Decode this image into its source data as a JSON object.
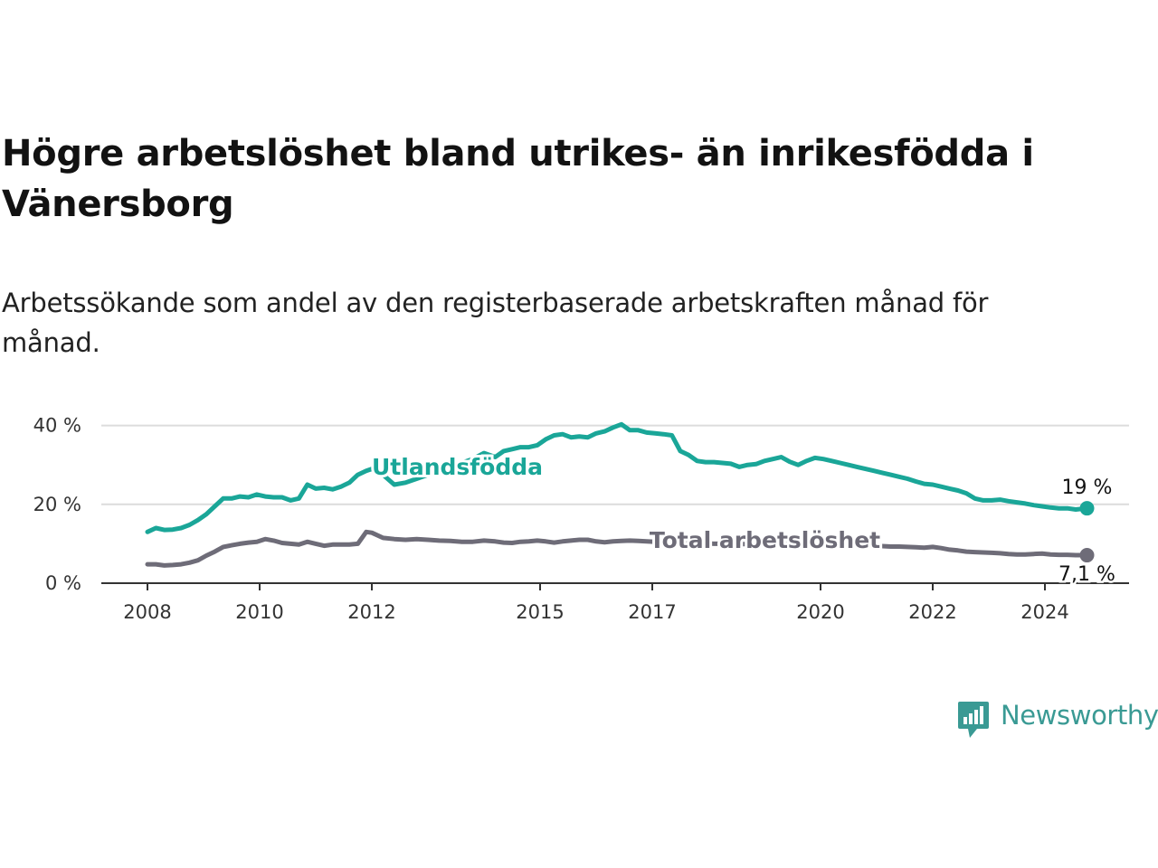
{
  "title": "Högre arbetslöshet bland utrikes- än inrikesfödda i Vänersborg",
  "subtitle": "Arbetssökande som andel av den registerbaserade arbetskraften månad för månad.",
  "brand": {
    "name": "Newsworthy",
    "icon": "newsworthy-logo-icon",
    "color": "#3a9a94"
  },
  "chart_data": {
    "type": "line",
    "title": "Högre arbetslöshet bland utrikes- än inrikesfödda i Vänersborg",
    "xlabel": "",
    "ylabel": "",
    "ylim": [
      0,
      45
    ],
    "y_ticks": [
      0,
      20,
      40
    ],
    "y_tick_labels": [
      "0 %",
      "20 %",
      "40 %"
    ],
    "x_ticks": [
      2008,
      2010,
      2012,
      2015,
      2017,
      2020,
      2022,
      2024
    ],
    "x_tick_labels": [
      "2008",
      "2010",
      "2012",
      "2015",
      "2017",
      "2020",
      "2022",
      "2024"
    ],
    "grid": true,
    "series": [
      {
        "name": "Utlandsfödda",
        "color": "#1aa698",
        "end_label": "19 %",
        "x": [
          2008.0,
          2008.15,
          2008.3,
          2008.45,
          2008.6,
          2008.75,
          2008.9,
          2009.05,
          2009.2,
          2009.35,
          2009.5,
          2009.65,
          2009.8,
          2009.95,
          2010.1,
          2010.25,
          2010.4,
          2010.55,
          2010.7,
          2010.85,
          2011.0,
          2011.15,
          2011.3,
          2011.45,
          2011.6,
          2011.75,
          2011.9,
          2012.0,
          2012.2,
          2012.4,
          2012.6,
          2012.8,
          2013.0,
          2013.2,
          2013.4,
          2013.6,
          2013.8,
          2014.0,
          2014.2,
          2014.35,
          2014.5,
          2014.65,
          2014.8,
          2014.95,
          2015.1,
          2015.25,
          2015.4,
          2015.55,
          2015.7,
          2015.85,
          2016.0,
          2016.15,
          2016.3,
          2016.45,
          2016.6,
          2016.75,
          2016.9,
          2017.05,
          2017.2,
          2017.35,
          2017.5,
          2017.65,
          2017.8,
          2017.95,
          2018.1,
          2018.25,
          2018.4,
          2018.55,
          2018.7,
          2018.85,
          2019.0,
          2019.15,
          2019.3,
          2019.45,
          2019.6,
          2019.75,
          2019.9,
          2020.05,
          2020.2,
          2020.35,
          2020.5,
          2020.65,
          2020.8,
          2020.95,
          2021.1,
          2021.25,
          2021.4,
          2021.55,
          2021.7,
          2021.85,
          2022.0,
          2022.15,
          2022.3,
          2022.45,
          2022.6,
          2022.75,
          2022.9,
          2023.05,
          2023.2,
          2023.35,
          2023.5,
          2023.65,
          2023.8,
          2023.95,
          2024.1,
          2024.25,
          2024.4,
          2024.55,
          2024.75
        ],
        "values": [
          13.0,
          14.0,
          13.5,
          13.6,
          14.0,
          14.8,
          16.0,
          17.5,
          19.5,
          21.5,
          21.5,
          22.0,
          21.8,
          22.5,
          22.0,
          21.8,
          21.8,
          21.0,
          21.5,
          25.0,
          24.0,
          24.2,
          23.8,
          24.5,
          25.5,
          27.5,
          28.5,
          29.0,
          27.5,
          25.0,
          25.5,
          26.5,
          27.5,
          28.5,
          29.5,
          30.5,
          31.5,
          33.0,
          32.0,
          33.5,
          34.0,
          34.5,
          34.5,
          35.0,
          36.5,
          37.5,
          37.8,
          37.0,
          37.2,
          37.0,
          38.0,
          38.5,
          39.5,
          40.3,
          38.8,
          38.8,
          38.2,
          38.0,
          37.8,
          37.5,
          33.5,
          32.5,
          31.0,
          30.7,
          30.7,
          30.5,
          30.3,
          29.5,
          30.0,
          30.2,
          31.0,
          31.5,
          32.0,
          30.8,
          30.0,
          31.0,
          31.8,
          31.5,
          31.0,
          30.5,
          30.0,
          29.5,
          29.0,
          28.5,
          28.0,
          27.5,
          27.0,
          26.5,
          25.8,
          25.2,
          25.0,
          24.5,
          24.0,
          23.5,
          22.8,
          21.5,
          21.0,
          21.0,
          21.2,
          20.8,
          20.5,
          20.2,
          19.8,
          19.5,
          19.2,
          19.0,
          19.0,
          18.7,
          19.0
        ]
      },
      {
        "name": "Total arbetslöshet",
        "color": "#6e6c78",
        "end_label": "7,1 %",
        "x": [
          2008.0,
          2008.15,
          2008.3,
          2008.45,
          2008.6,
          2008.75,
          2008.9,
          2009.05,
          2009.2,
          2009.35,
          2009.5,
          2009.65,
          2009.8,
          2009.95,
          2010.1,
          2010.25,
          2010.4,
          2010.55,
          2010.7,
          2010.85,
          2011.0,
          2011.15,
          2011.3,
          2011.45,
          2011.6,
          2011.75,
          2011.9,
          2012.0,
          2012.2,
          2012.4,
          2012.6,
          2012.8,
          2013.0,
          2013.2,
          2013.4,
          2013.6,
          2013.8,
          2014.0,
          2014.2,
          2014.35,
          2014.5,
          2014.65,
          2014.8,
          2014.95,
          2015.1,
          2015.25,
          2015.4,
          2015.55,
          2015.7,
          2015.85,
          2016.0,
          2016.15,
          2016.3,
          2016.45,
          2016.6,
          2016.75,
          2016.9,
          2017.05,
          2017.2,
          2017.35,
          2017.5,
          2017.65,
          2017.8,
          2017.95,
          2018.1,
          2018.25,
          2018.4,
          2018.55,
          2018.7,
          2018.85,
          2019.0,
          2019.15,
          2019.3,
          2019.45,
          2019.6,
          2019.75,
          2019.9,
          2020.05,
          2020.2,
          2020.35,
          2020.5,
          2020.65,
          2020.8,
          2020.95,
          2021.1,
          2021.25,
          2021.4,
          2021.55,
          2021.7,
          2021.85,
          2022.0,
          2022.15,
          2022.3,
          2022.45,
          2022.6,
          2022.75,
          2022.9,
          2023.05,
          2023.2,
          2023.35,
          2023.5,
          2023.65,
          2023.8,
          2023.95,
          2024.1,
          2024.25,
          2024.4,
          2024.55,
          2024.75
        ],
        "values": [
          4.8,
          4.8,
          4.5,
          4.6,
          4.8,
          5.2,
          5.8,
          7.0,
          8.0,
          9.2,
          9.6,
          10.0,
          10.3,
          10.5,
          11.2,
          10.8,
          10.2,
          10.0,
          9.8,
          10.5,
          10.0,
          9.5,
          9.8,
          9.8,
          9.8,
          10.0,
          13.0,
          12.8,
          11.5,
          11.2,
          11.0,
          11.2,
          11.0,
          10.8,
          10.7,
          10.5,
          10.5,
          10.8,
          10.6,
          10.3,
          10.2,
          10.5,
          10.6,
          10.8,
          10.6,
          10.3,
          10.6,
          10.8,
          11.0,
          11.0,
          10.6,
          10.4,
          10.6,
          10.7,
          10.8,
          10.7,
          10.6,
          10.5,
          10.5,
          10.4,
          10.4,
          10.3,
          10.2,
          10.1,
          10.0,
          10.0,
          10.0,
          9.9,
          9.9,
          9.8,
          9.8,
          9.8,
          9.9,
          9.9,
          9.9,
          9.8,
          9.8,
          9.8,
          9.7,
          9.6,
          9.6,
          9.6,
          9.5,
          9.5,
          9.4,
          9.3,
          9.3,
          9.2,
          9.1,
          9.0,
          9.2,
          8.9,
          8.5,
          8.3,
          8.0,
          7.9,
          7.8,
          7.7,
          7.6,
          7.4,
          7.3,
          7.3,
          7.4,
          7.5,
          7.3,
          7.2,
          7.2,
          7.1,
          7.1
        ]
      }
    ]
  }
}
